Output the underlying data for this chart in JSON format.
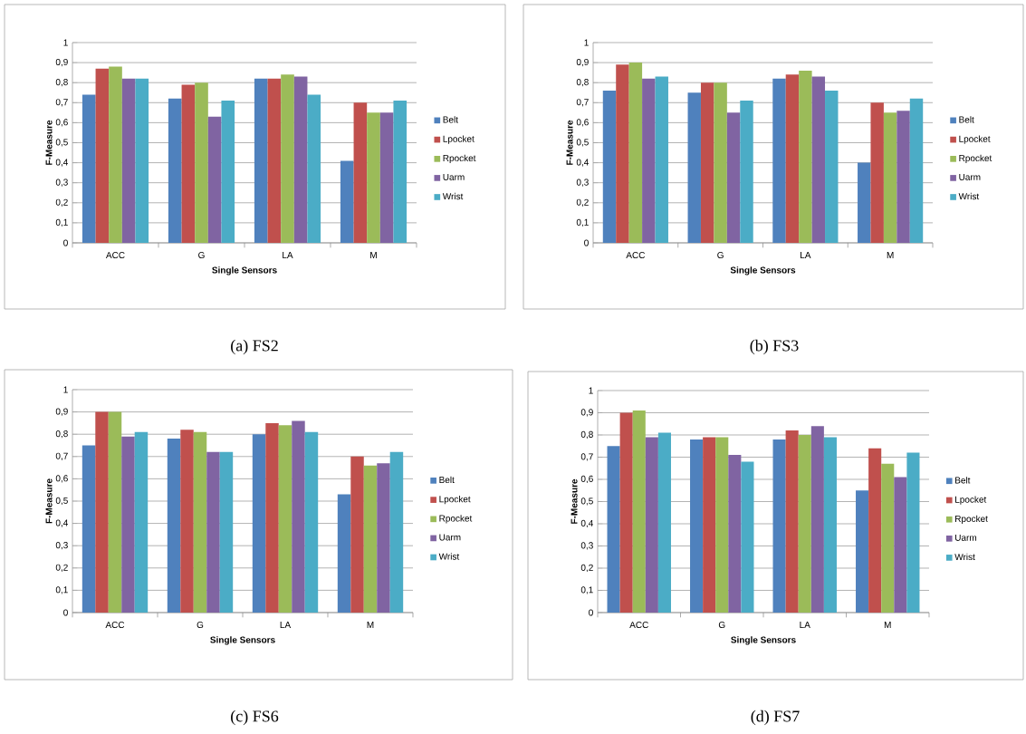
{
  "chart_data": [
    {
      "type": "bar",
      "title": "(a) FS2",
      "xlabel": "Single Sensors",
      "ylabel": "F-Measure",
      "categories": [
        "ACC",
        "G",
        "LA",
        "M"
      ],
      "ylim": [
        0,
        1
      ],
      "yticks": [
        0,
        {
          "value": 0.1,
          "label": "0,1"
        },
        {
          "value": 0.2,
          "label": "0,2"
        },
        {
          "value": 0.3,
          "label": "0,3"
        },
        {
          "value": 0.4,
          "label": "0,4"
        },
        {
          "value": 0.5,
          "label": "0,5"
        },
        {
          "value": 0.6,
          "label": "0,6"
        },
        {
          "value": 0.7,
          "label": "0,7"
        },
        {
          "value": 0.8,
          "label": "0,8"
        },
        {
          "value": 0.9,
          "label": "0,9"
        },
        1
      ],
      "grid": "y",
      "legend": "right",
      "series": [
        {
          "name": "Belt",
          "color": "#4f81bd",
          "values": [
            0.74,
            0.72,
            0.82,
            0.41
          ]
        },
        {
          "name": "Lpocket",
          "color": "#c0504d",
          "values": [
            0.87,
            0.79,
            0.82,
            0.7
          ]
        },
        {
          "name": "Rpocket",
          "color": "#9bbb59",
          "values": [
            0.88,
            0.8,
            0.84,
            0.65
          ]
        },
        {
          "name": "Uarm",
          "color": "#8064a2",
          "values": [
            0.82,
            0.63,
            0.83,
            0.65
          ]
        },
        {
          "name": "Wrist",
          "color": "#4bacc6",
          "values": [
            0.82,
            0.71,
            0.74,
            0.71
          ]
        }
      ]
    },
    {
      "type": "bar",
      "title": "(b) FS3",
      "xlabel": "Single Sensors",
      "ylabel": "F-Measure",
      "categories": [
        "ACC",
        "G",
        "LA",
        "M"
      ],
      "ylim": [
        0,
        1
      ],
      "yticks": [
        0,
        {
          "value": 0.1,
          "label": "0,1"
        },
        {
          "value": 0.2,
          "label": "0,2"
        },
        {
          "value": 0.3,
          "label": "0,3"
        },
        {
          "value": 0.4,
          "label": "0,4"
        },
        {
          "value": 0.5,
          "label": "0,5"
        },
        {
          "value": 0.6,
          "label": "0,6"
        },
        {
          "value": 0.7,
          "label": "0,7"
        },
        {
          "value": 0.8,
          "label": "0,8"
        },
        {
          "value": 0.9,
          "label": "0,9"
        },
        1
      ],
      "grid": "y",
      "legend": "right",
      "series": [
        {
          "name": "Belt",
          "color": "#4f81bd",
          "values": [
            0.76,
            0.75,
            0.82,
            0.4
          ]
        },
        {
          "name": "Lpocket",
          "color": "#c0504d",
          "values": [
            0.89,
            0.8,
            0.84,
            0.7
          ]
        },
        {
          "name": "Rpocket",
          "color": "#9bbb59",
          "values": [
            0.9,
            0.8,
            0.86,
            0.65
          ]
        },
        {
          "name": "Uarm",
          "color": "#8064a2",
          "values": [
            0.82,
            0.65,
            0.83,
            0.66
          ]
        },
        {
          "name": "Wrist",
          "color": "#4bacc6",
          "values": [
            0.83,
            0.71,
            0.76,
            0.72
          ]
        }
      ]
    },
    {
      "type": "bar",
      "title": "(c) FS6",
      "xlabel": "Single Sensors",
      "ylabel": "F-Measure",
      "categories": [
        "ACC",
        "G",
        "LA",
        "M"
      ],
      "ylim": [
        0,
        1
      ],
      "yticks": [
        0,
        {
          "value": 0.1,
          "label": "0,1"
        },
        {
          "value": 0.2,
          "label": "0,2"
        },
        {
          "value": 0.3,
          "label": "0,3"
        },
        {
          "value": 0.4,
          "label": "0,4"
        },
        {
          "value": 0.5,
          "label": "0,5"
        },
        {
          "value": 0.6,
          "label": "0,6"
        },
        {
          "value": 0.7,
          "label": "0,7"
        },
        {
          "value": 0.8,
          "label": "0,8"
        },
        {
          "value": 0.9,
          "label": "0,9"
        },
        1
      ],
      "grid": "y",
      "legend": "right",
      "series": [
        {
          "name": "Belt",
          "color": "#4f81bd",
          "values": [
            0.75,
            0.78,
            0.8,
            0.53
          ]
        },
        {
          "name": "Lpocket",
          "color": "#c0504d",
          "values": [
            0.9,
            0.82,
            0.85,
            0.7
          ]
        },
        {
          "name": "Rpocket",
          "color": "#9bbb59",
          "values": [
            0.9,
            0.81,
            0.84,
            0.66
          ]
        },
        {
          "name": "Uarm",
          "color": "#8064a2",
          "values": [
            0.79,
            0.72,
            0.86,
            0.67
          ]
        },
        {
          "name": "Wrist",
          "color": "#4bacc6",
          "values": [
            0.81,
            0.72,
            0.81,
            0.72
          ]
        }
      ]
    },
    {
      "type": "bar",
      "title": "(d) FS7",
      "xlabel": "Single Sensors",
      "ylabel": "F-Measure",
      "categories": [
        "ACC",
        "G",
        "LA",
        "M"
      ],
      "ylim": [
        0,
        1
      ],
      "yticks": [
        0,
        {
          "value": 0.1,
          "label": "0,1"
        },
        {
          "value": 0.2,
          "label": "0,2"
        },
        {
          "value": 0.3,
          "label": "0,3"
        },
        {
          "value": 0.4,
          "label": "0,4"
        },
        {
          "value": 0.5,
          "label": "0,5"
        },
        {
          "value": 0.6,
          "label": "0,6"
        },
        {
          "value": 0.7,
          "label": "0,7"
        },
        {
          "value": 0.8,
          "label": "0,8"
        },
        {
          "value": 0.9,
          "label": "0,9"
        },
        1
      ],
      "grid": "y",
      "legend": "right",
      "series": [
        {
          "name": "Belt",
          "color": "#4f81bd",
          "values": [
            0.75,
            0.78,
            0.78,
            0.55
          ]
        },
        {
          "name": "Lpocket",
          "color": "#c0504d",
          "values": [
            0.9,
            0.79,
            0.82,
            0.74
          ]
        },
        {
          "name": "Rpocket",
          "color": "#9bbb59",
          "values": [
            0.91,
            0.79,
            0.8,
            0.67
          ]
        },
        {
          "name": "Uarm",
          "color": "#8064a2",
          "values": [
            0.79,
            0.71,
            0.84,
            0.61
          ]
        },
        {
          "name": "Wrist",
          "color": "#4bacc6",
          "values": [
            0.81,
            0.68,
            0.79,
            0.72
          ]
        }
      ]
    }
  ]
}
